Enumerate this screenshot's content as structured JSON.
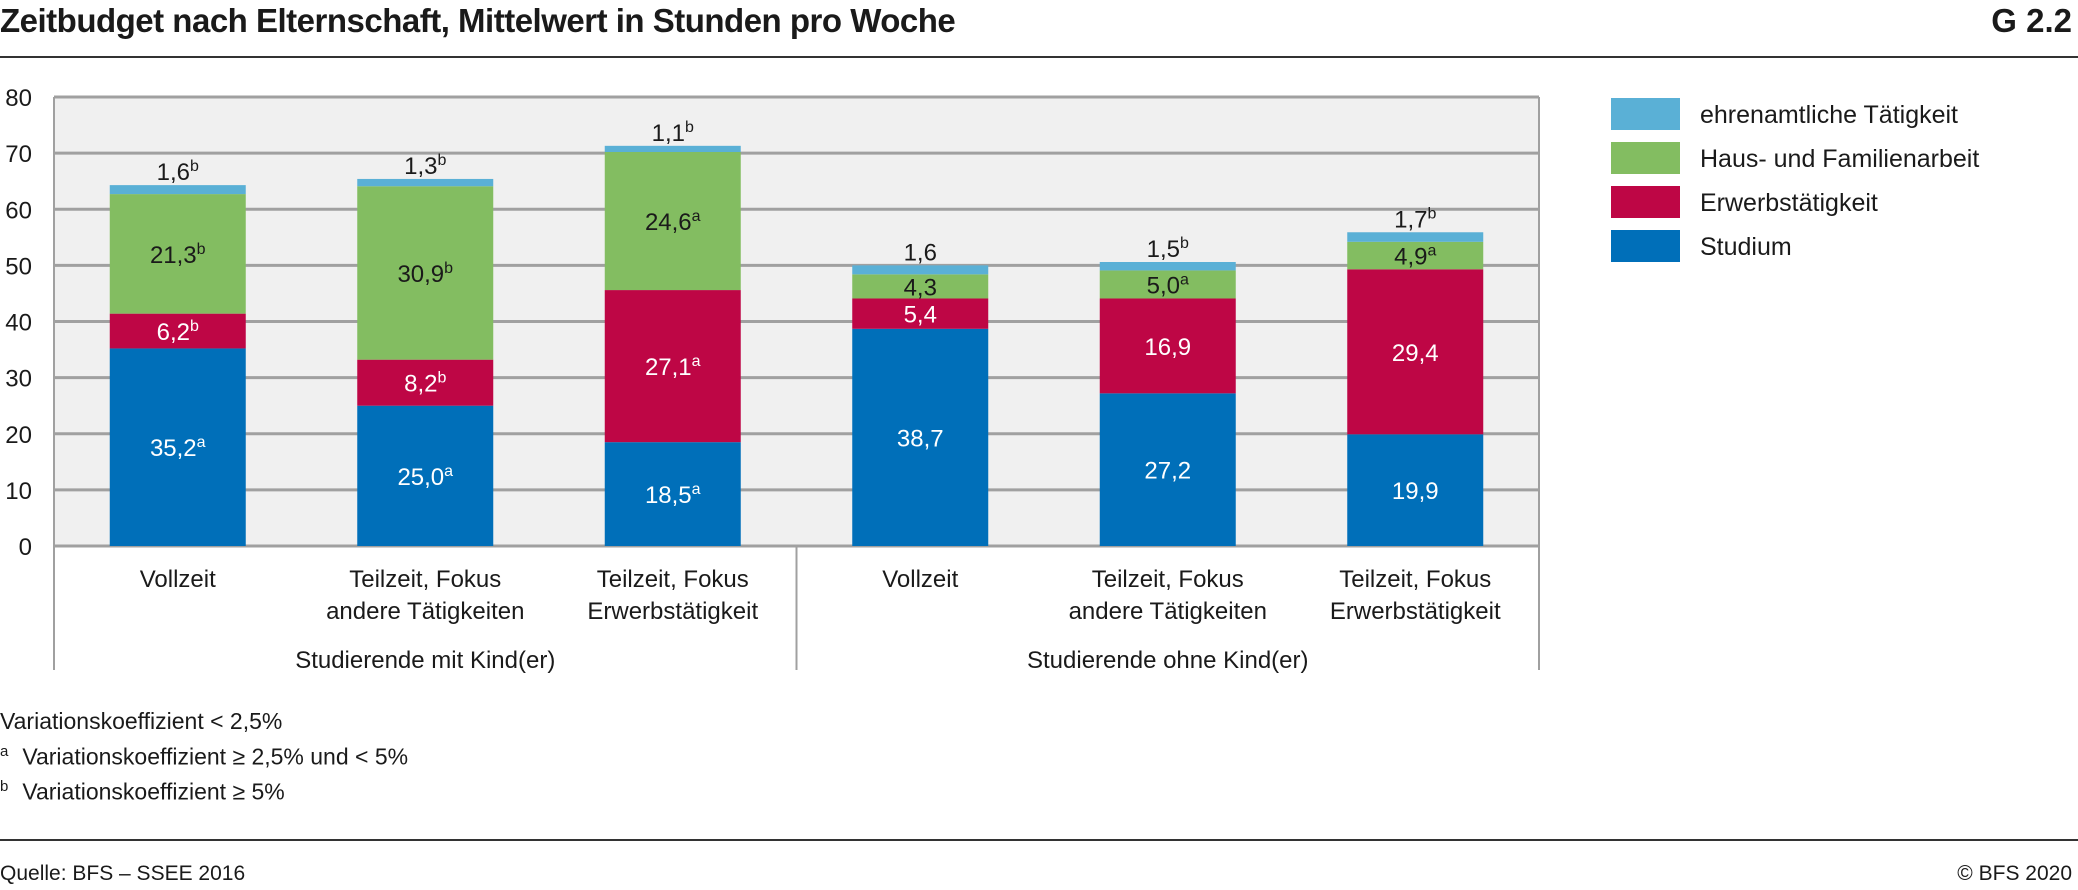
{
  "header": {
    "title": "Zeitbudget nach Elternschaft, Mittelwert in Stunden pro Woche",
    "graphic_number": "G 2.2"
  },
  "chart_data": {
    "type": "bar",
    "stacked": true,
    "title": "Zeitbudget nach Elternschaft, Mittelwert in Stunden pro Woche",
    "ylim": [
      0,
      80
    ],
    "yticks": [
      "0",
      "10",
      "20",
      "30",
      "40",
      "50",
      "60",
      "70",
      "80"
    ],
    "grid": true,
    "legend_position": "right",
    "categories": [
      "Vollzeit",
      "Teilzeit, Fokus andere Tätigkeiten",
      "Teilzeit, Fokus Erwerbstätigkeit",
      "Vollzeit",
      "Teilzeit, Fokus andere Tätigkeiten",
      "Teilzeit, Fokus Erwerbstätigkeit"
    ],
    "category_lines": [
      [
        "Vollzeit"
      ],
      [
        "Teilzeit, Fokus",
        "andere Tätigkeiten"
      ],
      [
        "Teilzeit, Fokus",
        "Erwerbstätigkeit"
      ],
      [
        "Vollzeit"
      ],
      [
        "Teilzeit, Fokus",
        "andere Tätigkeiten"
      ],
      [
        "Teilzeit, Fokus",
        "Erwerbstätigkeit"
      ]
    ],
    "groups": [
      {
        "label": "Studierende mit Kind(er)",
        "count": 3
      },
      {
        "label": "Studierende ohne Kind(er)",
        "count": 3
      }
    ],
    "series": [
      {
        "name": "Studium",
        "color": "#006fb9",
        "label_color": "#ffffff",
        "values": [
          35.2,
          25.0,
          18.5,
          38.7,
          27.2,
          19.9
        ],
        "labels": [
          "35,2",
          "25,0",
          "18,5",
          "38,7",
          "27,2",
          "19,9"
        ],
        "flags": [
          "a",
          "a",
          "a",
          "",
          "",
          ""
        ]
      },
      {
        "name": "Erwerbstätigkeit",
        "color": "#be0645",
        "label_color": "#ffffff",
        "values": [
          6.2,
          8.2,
          27.1,
          5.4,
          16.9,
          29.4
        ],
        "labels": [
          "6,2",
          "8,2",
          "27,1",
          "5,4",
          "16,9",
          "29,4"
        ],
        "flags": [
          "b",
          "b",
          "a",
          "",
          "",
          ""
        ]
      },
      {
        "name": "Haus- und Familienarbeit",
        "color": "#83bd61",
        "label_color": "#1a1a1a",
        "values": [
          21.3,
          30.9,
          24.6,
          4.3,
          5.0,
          4.9
        ],
        "labels": [
          "21,3",
          "30,9",
          "24,6",
          "4,3",
          "5,0",
          "4,9"
        ],
        "flags": [
          "b",
          "b",
          "a",
          "",
          "a",
          "a"
        ]
      },
      {
        "name": "ehrenamtliche Tätigkeit",
        "color": "#5ab0d6",
        "label_color": "#1a1a1a",
        "values": [
          1.6,
          1.3,
          1.1,
          1.6,
          1.5,
          1.7
        ],
        "labels": [
          "1,6",
          "1,3",
          "1,1",
          "1,6",
          "1,5",
          "1,7"
        ],
        "flags": [
          "b",
          "b",
          "b",
          "",
          "b",
          "b"
        ]
      }
    ]
  },
  "footnotes": [
    {
      "mark": "",
      "text": "Variationskoeffizient < 2,5%"
    },
    {
      "mark": "a",
      "text": "Variationskoeffizient ≥ 2,5% und < 5%"
    },
    {
      "mark": "b",
      "text": "Variationskoeffizient ≥ 5%"
    }
  ],
  "source": "Quelle: BFS – SSEE 2016",
  "copyright": "© BFS 2020"
}
